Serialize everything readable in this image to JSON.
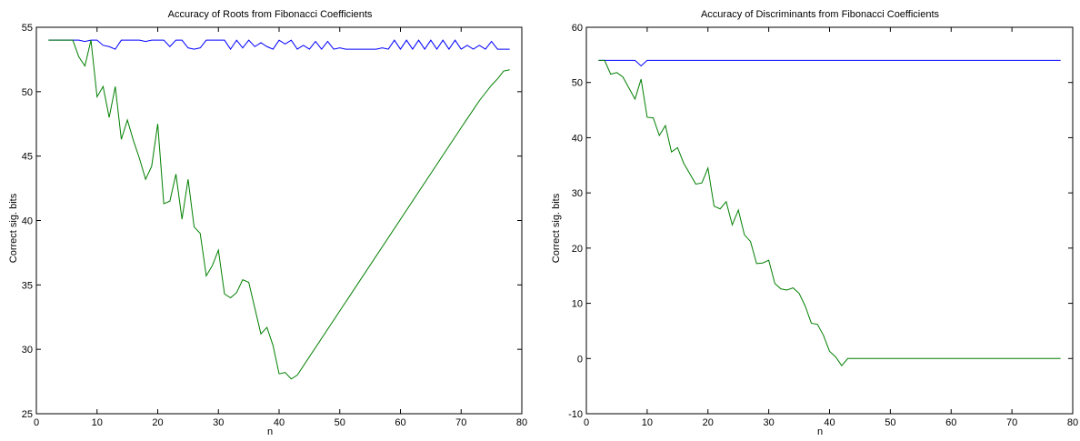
{
  "chart_data": [
    {
      "type": "line",
      "title": "Accuracy of Roots from Fibonacci Coefficients",
      "xlabel": "n",
      "ylabel": "Correct sig. bits",
      "xlim": [
        0,
        80
      ],
      "ylim": [
        25,
        55
      ],
      "xticks": [
        0,
        10,
        20,
        30,
        40,
        50,
        60,
        70,
        80
      ],
      "yticks": [
        25,
        30,
        35,
        40,
        45,
        50,
        55
      ],
      "grid": false,
      "legend": "none",
      "series": [
        {
          "color": "#0000ff",
          "x": [
            2,
            3,
            4,
            5,
            6,
            7,
            8,
            9,
            10,
            11,
            12,
            13,
            14,
            15,
            16,
            17,
            18,
            19,
            20,
            21,
            22,
            23,
            24,
            25,
            26,
            27,
            28,
            29,
            30,
            31,
            32,
            33,
            34,
            35,
            36,
            37,
            38,
            39,
            40,
            41,
            42,
            43,
            44,
            45,
            46,
            47,
            48,
            49,
            50,
            51,
            52,
            53,
            54,
            55,
            56,
            57,
            58,
            59,
            60,
            61,
            62,
            63,
            64,
            65,
            66,
            67,
            68,
            69,
            70,
            71,
            72,
            73,
            74,
            75,
            76,
            77,
            78
          ],
          "y": [
            54.0,
            54.0,
            54.0,
            54.0,
            54.0,
            54.0,
            53.9,
            54.0,
            54.0,
            53.6,
            53.5,
            53.3,
            54.0,
            54.0,
            54.0,
            54.0,
            53.9,
            54.0,
            54.0,
            54.0,
            53.5,
            54.0,
            54.0,
            53.4,
            53.3,
            53.4,
            54.0,
            54.0,
            54.0,
            54.0,
            53.3,
            54.0,
            53.4,
            54.0,
            53.5,
            53.8,
            53.5,
            53.3,
            54.0,
            53.7,
            54.0,
            53.3,
            53.6,
            53.3,
            53.9,
            53.3,
            53.9,
            53.3,
            53.4,
            53.3,
            53.3,
            53.3,
            53.3,
            53.3,
            53.3,
            53.4,
            53.3,
            54.0,
            53.3,
            54.0,
            53.3,
            54.0,
            53.3,
            54.0,
            53.3,
            54.0,
            53.3,
            54.0,
            53.3,
            53.6,
            53.3,
            53.6,
            53.3,
            53.9,
            53.3,
            53.3,
            53.3
          ]
        },
        {
          "color": "#007f00",
          "x": [
            2,
            3,
            4,
            5,
            6,
            7,
            8,
            9,
            10,
            11,
            12,
            13,
            14,
            15,
            16,
            17,
            18,
            19,
            20,
            21,
            22,
            23,
            24,
            25,
            26,
            27,
            28,
            29,
            30,
            31,
            32,
            33,
            34,
            35,
            36,
            37,
            38,
            39,
            40,
            41,
            42,
            43,
            70,
            71,
            72,
            73,
            74,
            75,
            76,
            77,
            78
          ],
          "y": [
            54.0,
            54.0,
            54.0,
            54.0,
            54.0,
            52.7,
            52.0,
            54.0,
            49.6,
            50.4,
            48.0,
            50.4,
            46.3,
            47.8,
            46.2,
            44.8,
            43.2,
            44.2,
            47.5,
            41.3,
            41.5,
            43.6,
            40.1,
            43.2,
            39.5,
            39.0,
            35.7,
            36.5,
            37.7,
            34.3,
            34.0,
            34.4,
            35.4,
            35.2,
            33.2,
            31.2,
            31.7,
            30.3,
            28.1,
            28.2,
            27.7,
            28.0,
            47.2,
            47.9,
            48.6,
            49.3,
            49.9,
            50.5,
            51.0,
            51.6,
            51.7
          ]
        }
      ]
    },
    {
      "type": "line",
      "title": "Accuracy of Discriminants from Fibonacci Coefficients",
      "xlabel": "n",
      "ylabel": "Correct sig. bits",
      "xlim": [
        0,
        80
      ],
      "ylim": [
        -10,
        60
      ],
      "xticks": [
        0,
        10,
        20,
        30,
        40,
        50,
        60,
        70,
        80
      ],
      "yticks": [
        -10,
        0,
        10,
        20,
        30,
        40,
        50,
        60
      ],
      "grid": false,
      "legend": "none",
      "series": [
        {
          "color": "#0000ff",
          "x": [
            2,
            8,
            9,
            10,
            78
          ],
          "y": [
            54.0,
            54.0,
            53.0,
            54.0,
            54.0
          ]
        },
        {
          "color": "#007f00",
          "x": [
            2,
            3,
            4,
            5,
            6,
            7,
            8,
            9,
            10,
            11,
            12,
            13,
            14,
            15,
            16,
            17,
            18,
            19,
            20,
            21,
            22,
            23,
            24,
            25,
            26,
            27,
            28,
            29,
            30,
            31,
            32,
            33,
            34,
            35,
            36,
            37,
            38,
            39,
            40,
            41,
            42,
            43,
            78
          ],
          "y": [
            54.0,
            54.0,
            51.5,
            51.8,
            51.0,
            49.0,
            47.0,
            50.6,
            43.7,
            43.6,
            40.4,
            42.2,
            37.4,
            38.2,
            35.4,
            33.5,
            31.6,
            31.8,
            34.5,
            27.6,
            27.1,
            28.4,
            24.2,
            26.9,
            22.4,
            21.2,
            17.2,
            17.3,
            17.8,
            13.6,
            12.6,
            12.4,
            12.8,
            11.8,
            9.5,
            6.4,
            6.2,
            4.2,
            1.3,
            0.3,
            -1.3,
            0.0,
            0.0
          ]
        }
      ]
    }
  ]
}
